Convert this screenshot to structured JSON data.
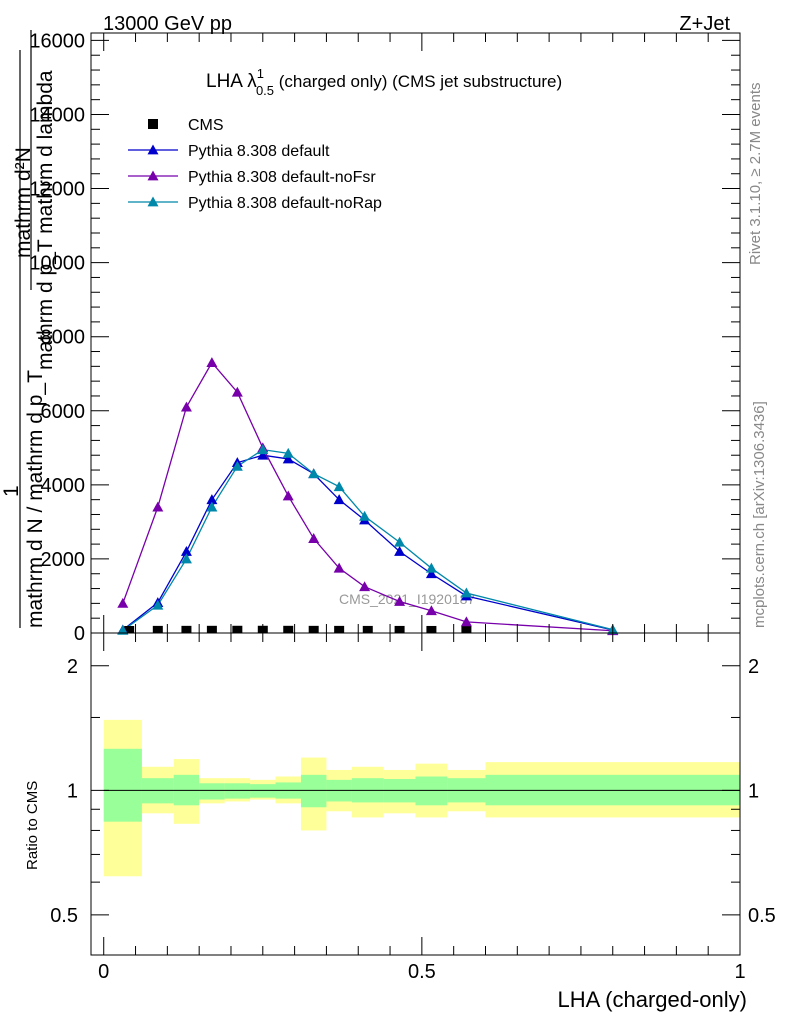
{
  "header": {
    "left": "13000 GeV pp",
    "right": "Z+Jet"
  },
  "title": {
    "prefix": "LHA ",
    "lambda": "λ",
    "sup": "1",
    "sub": "0.5",
    "suffix": " (charged only) (CMS jet substructure)"
  },
  "side_labels": {
    "rivet": "Rivet 3.1.10, ≥ 2.7M events",
    "mcplots": "mcplots.cern.ch [arXiv:1306.3436]"
  },
  "watermark": "CMS_2021_I1920187",
  "y_axis_label_lines": [
    "mathrm d²N",
    "mathrm d p_T mathrm d lambda",
    "1",
    "mathrm d N / mathrm d p_T"
  ],
  "ratio_ylabel": "Ratio to CMS",
  "xlabel": "LHA (charged-only)",
  "chart_data": {
    "type": "line",
    "main": {
      "ylim": [
        0,
        16200
      ],
      "yticks": [
        {
          "value": 0,
          "label": "0"
        },
        {
          "value": 2000,
          "label": "2000"
        },
        {
          "value": 4000,
          "label": "4000"
        },
        {
          "value": 6000,
          "label": "6000"
        },
        {
          "value": 8000,
          "label": "8000"
        },
        {
          "value": 10000,
          "label": "10000"
        },
        {
          "value": 12000,
          "label": "12000"
        },
        {
          "value": 14000,
          "label": "14000"
        },
        {
          "value": 16000,
          "label": "16000"
        }
      ]
    },
    "xlim": [
      -0.02,
      1.0
    ],
    "xticks": [
      {
        "value": 0,
        "label": "0"
      },
      {
        "value": 0.5,
        "label": "0.5"
      },
      {
        "value": 1,
        "label": "1"
      }
    ],
    "legend_position": "top-left",
    "series": [
      {
        "name": "CMS",
        "color": "#000000",
        "marker": "square",
        "x": [
          0.04,
          0.085,
          0.13,
          0.17,
          0.21,
          0.25,
          0.29,
          0.33,
          0.37,
          0.415,
          0.465,
          0.515,
          0.57
        ],
        "y": [
          0,
          3,
          4,
          5,
          6,
          6,
          5,
          4,
          3,
          2,
          2,
          1,
          1
        ]
      },
      {
        "name": "Pythia 8.308 default",
        "color": "#0000cc",
        "marker": "triangle",
        "x": [
          0.03,
          0.085,
          0.13,
          0.17,
          0.21,
          0.25,
          0.29,
          0.33,
          0.37,
          0.41,
          0.465,
          0.515,
          0.57,
          0.8
        ],
        "y": [
          80,
          820,
          2200,
          3600,
          4600,
          4800,
          4700,
          4300,
          3600,
          3050,
          2200,
          1600,
          1000,
          80
        ]
      },
      {
        "name": "Pythia 8.308 default-noFsr",
        "color": "#7700aa",
        "marker": "triangle",
        "x": [
          0.03,
          0.085,
          0.13,
          0.17,
          0.21,
          0.25,
          0.29,
          0.33,
          0.37,
          0.41,
          0.465,
          0.515,
          0.57,
          0.8
        ],
        "y": [
          800,
          3400,
          6100,
          7300,
          6500,
          5000,
          3700,
          2550,
          1750,
          1250,
          850,
          600,
          300,
          60
        ]
      },
      {
        "name": "Pythia 8.308 default-noRap",
        "color": "#0088aa",
        "marker": "triangle",
        "x": [
          0.03,
          0.085,
          0.13,
          0.17,
          0.21,
          0.25,
          0.29,
          0.33,
          0.37,
          0.41,
          0.465,
          0.515,
          0.57,
          0.8
        ],
        "y": [
          70,
          750,
          2000,
          3400,
          4500,
          4950,
          4850,
          4300,
          3950,
          3150,
          2450,
          1750,
          1080,
          90
        ]
      }
    ],
    "ratio": {
      "ylim": [
        0.4,
        2.4
      ],
      "log_scale": true,
      "reference_line": 1.0,
      "yticks": [
        {
          "value": 0.5,
          "label": "0.5"
        },
        {
          "value": 1,
          "label": "1"
        },
        {
          "value": 2,
          "label": "2"
        }
      ],
      "bands": [
        {
          "x0": 0.0,
          "x1": 0.06,
          "inner": [
            0.84,
            1.26
          ],
          "outer": [
            0.62,
            1.48
          ]
        },
        {
          "x0": 0.06,
          "x1": 0.11,
          "inner": [
            0.93,
            1.07
          ],
          "outer": [
            0.88,
            1.14
          ]
        },
        {
          "x0": 0.11,
          "x1": 0.15,
          "inner": [
            0.92,
            1.09
          ],
          "outer": [
            0.83,
            1.19
          ]
        },
        {
          "x0": 0.15,
          "x1": 0.19,
          "inner": [
            0.95,
            1.04
          ],
          "outer": [
            0.93,
            1.07
          ]
        },
        {
          "x0": 0.19,
          "x1": 0.23,
          "inner": [
            0.955,
            1.04
          ],
          "outer": [
            0.94,
            1.07
          ]
        },
        {
          "x0": 0.23,
          "x1": 0.27,
          "inner": [
            0.96,
            1.035
          ],
          "outer": [
            0.95,
            1.06
          ]
        },
        {
          "x0": 0.27,
          "x1": 0.31,
          "inner": [
            0.955,
            1.045
          ],
          "outer": [
            0.93,
            1.08
          ]
        },
        {
          "x0": 0.31,
          "x1": 0.35,
          "inner": [
            0.91,
            1.09
          ],
          "outer": [
            0.8,
            1.2
          ]
        },
        {
          "x0": 0.35,
          "x1": 0.39,
          "inner": [
            0.94,
            1.06
          ],
          "outer": [
            0.89,
            1.12
          ]
        },
        {
          "x0": 0.39,
          "x1": 0.44,
          "inner": [
            0.935,
            1.07
          ],
          "outer": [
            0.86,
            1.14
          ]
        },
        {
          "x0": 0.44,
          "x1": 0.49,
          "inner": [
            0.935,
            1.065
          ],
          "outer": [
            0.88,
            1.12
          ]
        },
        {
          "x0": 0.49,
          "x1": 0.54,
          "inner": [
            0.92,
            1.08
          ],
          "outer": [
            0.86,
            1.16
          ]
        },
        {
          "x0": 0.54,
          "x1": 0.6,
          "inner": [
            0.935,
            1.07
          ],
          "outer": [
            0.89,
            1.12
          ]
        },
        {
          "x0": 0.6,
          "x1": 1.0,
          "inner": [
            0.92,
            1.09
          ],
          "outer": [
            0.86,
            1.17
          ]
        }
      ]
    }
  },
  "colors": {
    "band_inner": "#99ff99",
    "band_outer": "#ffff99",
    "watermark": "#999999",
    "side_label": "#888888"
  }
}
